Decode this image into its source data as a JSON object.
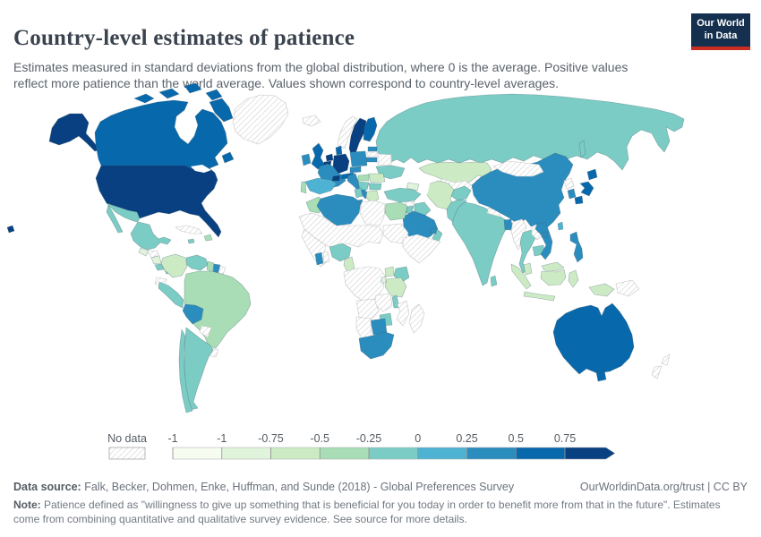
{
  "chart_data": {
    "type": "choropleth",
    "title": "Country-level estimates of patience",
    "subtitle": "Estimates measured in standard deviations from the global distribution, where 0 is the average. Positive values reflect more patience than the world average. Values shown correspond to country-level averages.",
    "legend": {
      "no_data_label": "No data",
      "tick_labels": [
        "-1",
        "-1",
        "-0.75",
        "-0.5",
        "-0.25",
        "0",
        "0.25",
        "0.5",
        "0.75"
      ],
      "bin_colors": [
        "#f7fcf0",
        "#e0f3db",
        "#ccebc5",
        "#a8ddb5",
        "#7bccc4",
        "#4eb3d3",
        "#2b8cbe",
        "#0868ac",
        "#084081"
      ],
      "bin_ranges": [
        "< -1",
        "-1 to -0.75",
        "-0.75 to -0.5",
        "-0.5 to -0.25",
        "-0.25 to 0",
        "0 to 0.25",
        "0.25 to 0.5",
        "0.5 to 0.75",
        "> 0.75"
      ]
    },
    "countries": {
      "greenland": 0,
      "usa-alaska": 9,
      "canada": 8,
      "arctic-island-1": 8,
      "arctic-island-2": 8,
      "arctic-island-3": 8,
      "arctic-island-4": 8,
      "baffin-island": 8,
      "newfoundland": 8,
      "usa": 9,
      "hawaii": 9,
      "mexico": 5,
      "baja-california": 5,
      "guatemala": 2,
      "honduras": 0,
      "nicaragua": 2,
      "costa-rica": 5,
      "panama": 5,
      "cuba": 0,
      "jamaica": 5,
      "haiti": 4,
      "colombia": 3,
      "venezuela": 5,
      "guyana": 4,
      "suriname": 7,
      "french-guiana": 0,
      "ecuador": 0,
      "peru": 5,
      "brazil": 4,
      "bolivia": 7,
      "paraguay": 0,
      "uruguay": 0,
      "argentina": 5,
      "chile": 5,
      "iceland": 0,
      "ireland": 7,
      "united-kingdom": 8,
      "norway": 0,
      "sweden": 9,
      "finland": 8,
      "denmark": 8,
      "estonia": 7,
      "latvia": 0,
      "lithuania": 7,
      "netherlands": 9,
      "belgium": 9,
      "germany": 9,
      "poland": 7,
      "belarus": 0,
      "ukraine": 5,
      "france": 7,
      "spain": 6,
      "portugal": 4,
      "switzerland": 9,
      "austria": 8,
      "czechia": 7,
      "italy": 7,
      "sicily": 7,
      "hungary": 4,
      "romania": 3,
      "serbia": 5,
      "bulgaria": 5,
      "greece": 3,
      "russia": 5,
      "sakhalin": 5,
      "kazakhstan": 3,
      "uzbekistan-turkmenistan": 0,
      "kyrgyzstan-tajikistan": 0,
      "caucasus": 2,
      "turkey": 5,
      "syria": 0,
      "iraq": 5,
      "israel": 7,
      "jordan": 5,
      "saudi-arabia": 7,
      "yemen": 0,
      "oman": 5,
      "uae": 7,
      "iran": 3,
      "afghanistan": 5,
      "pakistan": 5,
      "india": 5,
      "nepal": 0,
      "bangladesh": 7,
      "sri-lanka": 5,
      "myanmar": 0,
      "thailand": 5,
      "laos": 0,
      "cambodia": 5,
      "vietnam": 7,
      "china": 7,
      "mongolia": 0,
      "hainan": 7,
      "taiwan": 6,
      "north-korea": 0,
      "south-korea": 7,
      "japan-hokkaido": 8,
      "japan-honshu": 8,
      "japan-kyushu": 8,
      "philippines": 7,
      "malaysia-peninsula": 3,
      "malaysia-borneo": 3,
      "indonesia-sumatra": 3,
      "indonesia-kalimantan": 3,
      "indonesia-java": 3,
      "indonesia-sulawesi": 3,
      "indonesia-papua": 3,
      "papua-new-guinea": 0,
      "australia": 8,
      "tasmania": 8,
      "new-zealand-north": 0,
      "new-zealand-south": 0,
      "morocco": 4,
      "sahel-belt": 0,
      "west-africa-coast": 0,
      "algeria": 7,
      "tunisia": 5,
      "libya": 0,
      "egypt": 4,
      "sudan": 0,
      "ghana": 7,
      "togo-benin": 0,
      "nigeria": 5,
      "cameroon": 3,
      "central-africa": 0,
      "horn-of-africa": 0,
      "kenya": 5,
      "uganda": 3,
      "tanzania": 3,
      "rwanda": 2,
      "malawi": 5,
      "zambia": 0,
      "angola": 0,
      "mozambique": 0,
      "zimbabwe": 5,
      "botswana": 7,
      "namibia": 0,
      "south-africa": 7,
      "madagascar": 0
    }
  },
  "header": {
    "logo_line1": "Our World",
    "logo_line2": "in Data"
  },
  "footer": {
    "source_label": "Data source:",
    "source_text": " Falk, Becker, Dohmen, Enke, Huffman, and Sunde (2018) - Global Preferences Survey",
    "attribution": "OurWorldinData.org/trust | CC BY",
    "note_label": "Note:",
    "note_text": " Patience defined as \"willingness to give up something that is beneficial for you today in order to benefit more from that in the future\". Estimates come from combining quantitative and qualitative survey evidence. See source for more details."
  }
}
